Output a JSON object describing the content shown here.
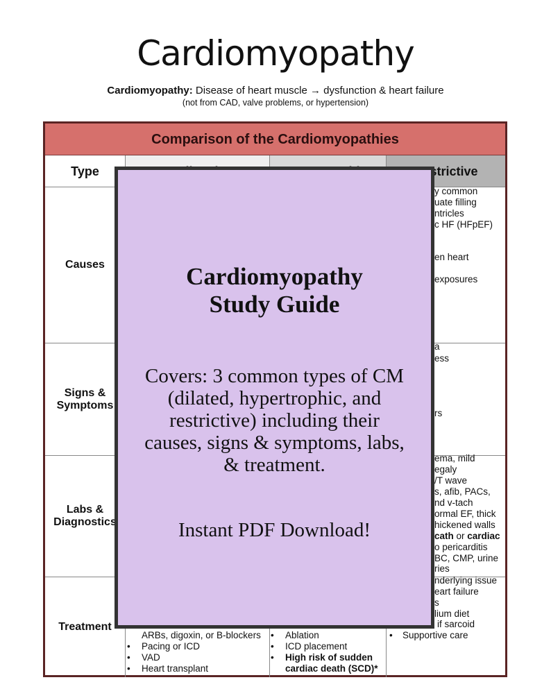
{
  "title": "Cardiomyopathy",
  "definition": {
    "term": "Cardiomyopathy:",
    "text": " Disease of heart muscle → dysfunction & heart failure",
    "note": "(not from CAD, valve problems, or hypertension)"
  },
  "table": {
    "caption": "Comparison of the Cardiomyopathies",
    "headers": [
      "Type",
      "Dilated",
      "Hypertrophic",
      "Restrictive"
    ],
    "rows": [
      "Causes",
      "Signs & Symptoms",
      "Labs & Diagnostics",
      "Treatment"
    ],
    "restrictive_causes": [
      "y common",
      "uate filling",
      "ntricles",
      "c HF (HFpEF)",
      "en heart",
      "exposures"
    ],
    "restrictive_signs": [
      "a",
      "ess",
      "rs"
    ],
    "restrictive_labs": [
      "ema, mild",
      "egaly",
      "/T wave",
      "s, afib, PACs,",
      "nd v-tach",
      "ormal EF, thick",
      "hickened walls",
      " cath",
      " or ",
      "cardiac",
      "o pericarditis",
      "BC, CMP, urine",
      "ries"
    ],
    "restrictive_treatment": [
      "nderlying issue",
      "eart failure",
      "s",
      "lium diet",
      "if sarcoid",
      "Supportive care"
    ],
    "dilated_treatment": [
      "ARBs, digoxin, or B-blockers",
      "Pacing or ICD",
      "VAD",
      "Heart transplant"
    ],
    "hypertrophic_treatment": [
      "Ablation",
      "ICD placement",
      "High risk of sudden",
      "cardiac death (SCD)*"
    ],
    "bullet": "•"
  },
  "overlay": {
    "title_line1": "Cardiomyopathy",
    "title_line2": "Study Guide",
    "body": [
      "Covers: 3 common types of CM",
      "(dilated, hypertrophic, and",
      "restrictive) including their",
      "causes, signs & symptoms, labs,",
      "& treatment."
    ],
    "cta": "Instant PDF Download!",
    "background": "#d9c2ec"
  }
}
